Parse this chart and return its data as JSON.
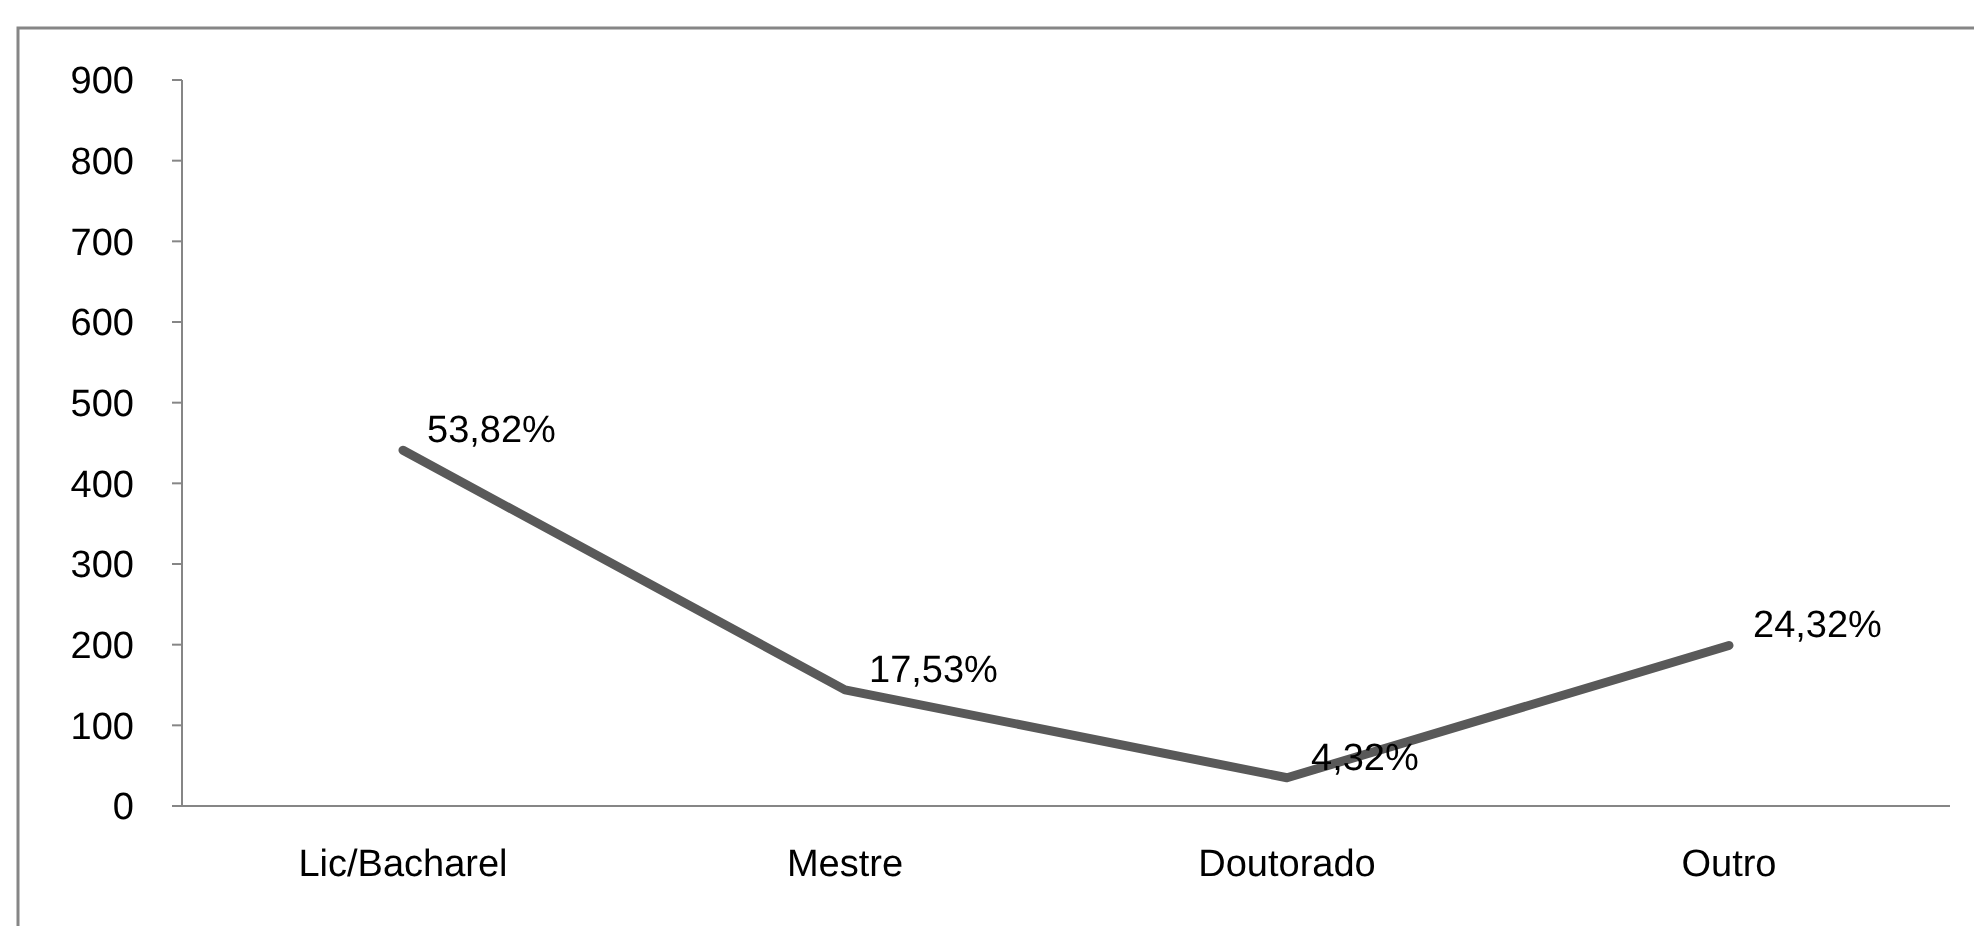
{
  "chart_data": {
    "type": "line",
    "categories": [
      "Lic/Bacharel",
      "Mestre",
      "Doutorado",
      "Outro"
    ],
    "series": [
      {
        "color": "#595959",
        "values": [
          441,
          144,
          35,
          199
        ]
      }
    ],
    "annotations": [
      {
        "text": "53,82%",
        "x": "Lic/Bacharel",
        "y": 441
      },
      {
        "text": "17,53%",
        "x": "Mestre",
        "y": 144
      },
      {
        "text": "4,32%",
        "x": "Doutorado",
        "y": 35
      },
      {
        "text": "24,32%",
        "x": "Outro",
        "y": 199
      }
    ],
    "ylim": [
      0,
      900
    ],
    "yticks": [
      0,
      100,
      200,
      300,
      400,
      500,
      600,
      700,
      800,
      900
    ],
    "marker": "none",
    "line_style": "solid"
  }
}
